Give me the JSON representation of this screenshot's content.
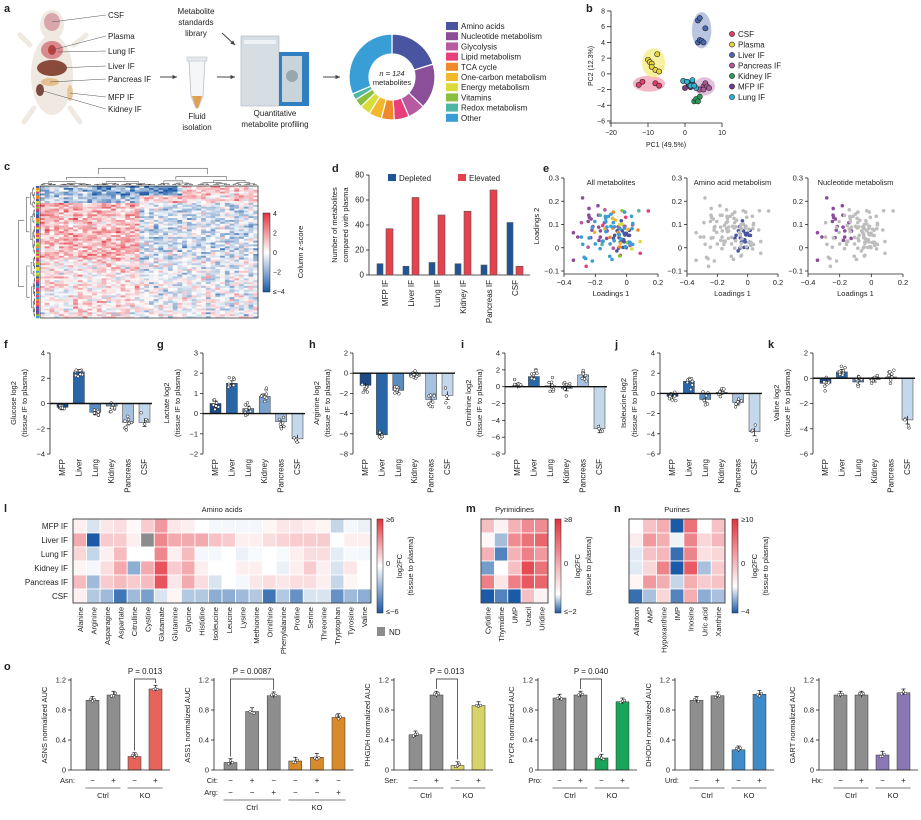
{
  "panel_labels": [
    "a",
    "b",
    "c",
    "d",
    "e",
    "f",
    "g",
    "h",
    "i",
    "j",
    "k",
    "l",
    "m",
    "n",
    "o"
  ],
  "panel_a": {
    "tissues": [
      "CSF",
      "Plasma",
      "Lung IF",
      "Liver IF",
      "Pancreas IF",
      "MFP IF",
      "Kidney IF"
    ],
    "library_label": [
      "Metabolite",
      "standards",
      "library"
    ],
    "fluid_label": [
      "Fluid",
      "isolation"
    ],
    "profiling_label": [
      "Quantitative",
      "metabolite profiling"
    ],
    "donut_center": [
      "n = 124",
      "metabolites"
    ]
  },
  "chart_data": [
    {
      "id": "donut",
      "type": "pie",
      "total": 124,
      "categories": [
        "Amino acids",
        "Nucleotide metabolism",
        "Glycolysis",
        "Lipid metabolism",
        "TCA cycle",
        "One-carbon metabolism",
        "Energy metabolism",
        "Vitamins",
        "Redox metabolism",
        "Other"
      ],
      "values": [
        25,
        21,
        8,
        7,
        6,
        6,
        5,
        4,
        3,
        39
      ],
      "colors": [
        "#4a55a2",
        "#8b4f9a",
        "#b85aa0",
        "#e83e7a",
        "#ee8a2a",
        "#f2b72a",
        "#d9dc3a",
        "#8bbf3e",
        "#4fb5a5",
        "#3a9ed6"
      ]
    },
    {
      "id": "pca",
      "type": "scatter",
      "xlabel": "PC1 (49.5%)",
      "ylabel": "PC2 (12.3%)",
      "xlim": [
        -20,
        10
      ],
      "ylim": [
        -6,
        8
      ],
      "xticks": [
        -20,
        -10,
        0,
        10
      ],
      "yticks": [
        -6,
        -4,
        -2,
        0,
        2,
        4,
        6,
        8
      ],
      "series": [
        {
          "name": "CSF",
          "color": "#e0406a",
          "ellipse": "#f3aabb",
          "points": [
            [
              -12.5,
              -1.4
            ],
            [
              -11.5,
              -1
            ],
            [
              -8,
              -1.2
            ],
            [
              -7,
              -1.5
            ]
          ]
        },
        {
          "name": "Plasma",
          "color": "#e9d33a",
          "ellipse": "#f6ee8e",
          "points": [
            [
              -10,
              1.8
            ],
            [
              -9.5,
              1.5
            ],
            [
              -9,
              1.3
            ],
            [
              -9,
              0.9
            ],
            [
              -8,
              0.5
            ],
            [
              -7.5,
              2.5
            ],
            [
              -7,
              0.3
            ]
          ]
        },
        {
          "name": "Liver IF",
          "color": "#4a68b0",
          "ellipse": "#aebbdc",
          "points": [
            [
              3.5,
              6.8
            ],
            [
              4,
              7.1
            ],
            [
              5.5,
              5.8
            ],
            [
              3.5,
              4
            ],
            [
              4,
              4.3
            ],
            [
              4.5,
              4.2
            ],
            [
              5,
              4
            ]
          ]
        },
        {
          "name": "Pancreas IF",
          "color": "#b05a9a",
          "ellipse": "#dcb7d8",
          "points": [
            [
              4,
              -2
            ],
            [
              5,
              -1.6
            ],
            [
              5.5,
              -1.2
            ],
            [
              6,
              -1.6
            ],
            [
              6.5,
              -1.8
            ],
            [
              5,
              -2
            ]
          ]
        },
        {
          "name": "Kidney IF",
          "color": "#2e9a5a",
          "points": [
            [
              2.5,
              -3.5
            ],
            [
              3,
              -3.2
            ],
            [
              3.5,
              -3.5
            ],
            [
              4,
              -2.9
            ]
          ]
        },
        {
          "name": "MFP IF",
          "color": "#7a3a8a",
          "points": [
            [
              0,
              -1.8
            ],
            [
              1,
              -1.3
            ],
            [
              0.5,
              -1
            ],
            [
              2,
              -1.2
            ],
            [
              1.5,
              -1.7
            ]
          ]
        },
        {
          "name": "Lung IF",
          "color": "#2bb3d0",
          "points": [
            [
              -0.5,
              -0.9
            ],
            [
              0.5,
              -1
            ],
            [
              1.5,
              -1.5
            ],
            [
              2,
              -0.8
            ],
            [
              3,
              -1.8
            ],
            [
              2.5,
              -1.5
            ]
          ]
        }
      ]
    },
    {
      "id": "zscore-heatmap",
      "type": "heatmap",
      "colorbar_label": "Column z-score",
      "colorbar_ticks": [
        "4",
        "2",
        "0",
        "−2",
        "≤−4"
      ],
      "range": [
        -4,
        4
      ]
    },
    {
      "id": "depleted-elevated",
      "type": "bar",
      "ylabel": [
        "Number of metabolites",
        "compared with plasma"
      ],
      "ylim": [
        0,
        80
      ],
      "yticks": [
        0,
        20,
        40,
        60,
        80
      ],
      "categories": [
        "MFP IF",
        "Liver IF",
        "Lung IF",
        "Kidney IF",
        "Pancreas IF",
        "CSF"
      ],
      "series": [
        {
          "name": "Depleted",
          "color": "#1f5597",
          "values": [
            9,
            7,
            10,
            9,
            8,
            42
          ]
        },
        {
          "name": "Elevated",
          "color": "#e8414e",
          "values": [
            37,
            62,
            48,
            51,
            68,
            7
          ]
        }
      ]
    },
    {
      "id": "loadings",
      "type": "scatter",
      "xlabel": "Loadings 1",
      "ylabel": "Loadings 2",
      "xlim": [
        -0.4,
        0.2
      ],
      "ylim": [
        -0.1,
        0.3
      ],
      "xticks": [
        "−0.4",
        "−0.2",
        "0",
        "0.2"
      ],
      "yticks": [
        "−0.1",
        "0",
        "0.1",
        "0.2",
        "0.3"
      ],
      "titles": [
        "All metabolites",
        "Amino acid metabolism",
        "Nucleotide metabolism"
      ],
      "highlight": [
        null,
        "Amino acids",
        "Nucleotide metabolism"
      ]
    },
    {
      "id": "tissue-bars",
      "type": "bar",
      "categories": [
        "MFP",
        "Liver",
        "Lung",
        "Kidney",
        "Pancreas",
        "CSF"
      ],
      "colors": [
        "#1d4a86",
        "#2866a8",
        "#5b8cc0",
        "#7aa3cf",
        "#a7c2e0",
        "#c5d7ea"
      ],
      "ylabel_suffix": "(tissue IF to plasma)",
      "panels": [
        {
          "label": "f",
          "metabolite": "Glucose log2",
          "ylim": [
            -4,
            4
          ],
          "yticks": [
            -4,
            -2,
            0,
            2,
            4
          ],
          "values": [
            -0.3,
            2.5,
            -0.7,
            -0.2,
            -1.5,
            -1.5
          ]
        },
        {
          "label": "g",
          "metabolite": "Lactate log2",
          "ylim": [
            -2,
            3
          ],
          "yticks": [
            -2,
            -1,
            0,
            1,
            2,
            3
          ],
          "values": [
            0.5,
            1.5,
            0.25,
            0.85,
            -0.4,
            -1.25
          ]
        },
        {
          "label": "h",
          "metabolite": "Arginine log2",
          "ylim": [
            -8,
            2
          ],
          "yticks": [
            -8,
            -6,
            -4,
            -2,
            0,
            2
          ],
          "values": [
            -1.2,
            -6.1,
            -1.7,
            -0.3,
            -2.6,
            -2.2
          ]
        },
        {
          "label": "i",
          "metabolite": "Ornithine log2",
          "ylim": [
            -8,
            4
          ],
          "yticks": [
            -8,
            -6,
            -4,
            -2,
            0,
            2,
            4
          ],
          "values": [
            0.1,
            1.2,
            0.1,
            -0.2,
            1.4,
            -5
          ]
        },
        {
          "label": "j",
          "metabolite": "Isoleucine log2",
          "ylim": [
            -6,
            4
          ],
          "yticks": [
            -6,
            -4,
            -2,
            0,
            2,
            4
          ],
          "values": [
            -0.3,
            1.2,
            -0.6,
            0.1,
            -0.9,
            -3.8
          ]
        },
        {
          "label": "k",
          "metabolite": "Valine log2",
          "ylim": [
            -6,
            2
          ],
          "yticks": [
            -6,
            -4,
            -2,
            0,
            2
          ],
          "values": [
            -0.4,
            0.5,
            -0.3,
            -0.1,
            0.1,
            -3.3
          ]
        }
      ]
    },
    {
      "id": "log2fc-heatmaps",
      "type": "heatmap",
      "colorbar_label": "log2FC",
      "colorbar_sub": "(tissue to plasma)",
      "nd_label": "ND",
      "rows": [
        "MFP IF",
        "Liver IF",
        "Lung IF",
        "Kidney IF",
        "Pancreas IF",
        "CSF"
      ],
      "panels": [
        {
          "label": "l",
          "title": "Amino acids",
          "range": [
            -6,
            6
          ],
          "ticks": [
            "≥6",
            "0",
            "≤−6"
          ],
          "columns": [
            "Alanine",
            "Arginine",
            "Asparagine",
            "Aspartate",
            "Citrulline",
            "Cystine",
            "Glutamate",
            "Glutamine",
            "Glycine",
            "Histidine",
            "Isoleucine",
            "Leucine",
            "Lysine",
            "Methionine",
            "Ornithine",
            "Phenylalanine",
            "Proline",
            "Serine",
            "Threonine",
            "Tryptophan",
            "Tyrosine",
            "Valine"
          ],
          "values": [
            [
              0.5,
              -1,
              0.7,
              1,
              0.2,
              1.5,
              3,
              0.7,
              0.5,
              0,
              -0.3,
              -0.3,
              -0.3,
              -0.3,
              0.3,
              0.7,
              0.7,
              0.5,
              0.3,
              -1.5,
              -0.3,
              -0.5
            ],
            [
              2.5,
              -6,
              1.5,
              1.5,
              0.5,
              null,
              3.5,
              2.5,
              2.5,
              2.5,
              1.8,
              1.5,
              0.5,
              0.5,
              1,
              1.3,
              1.5,
              1.5,
              1.5,
              0,
              0.5,
              0.5
            ],
            [
              1.2,
              -1.5,
              0.5,
              2,
              0,
              0,
              3.5,
              0.5,
              2,
              -0.3,
              -0.3,
              0,
              -0.5,
              -0.2,
              0,
              -0.2,
              0.5,
              1,
              1,
              -0.7,
              -0.2,
              -0.3
            ],
            [
              0.3,
              -0.3,
              1,
              2.5,
              -3,
              2.5,
              5,
              1.5,
              2.5,
              0.5,
              0,
              0,
              0.5,
              0.5,
              0,
              -0.5,
              0.5,
              1.5,
              0.5,
              -1,
              0.7,
              0
            ],
            [
              2,
              -2.5,
              1.5,
              2,
              1.5,
              2,
              5,
              0.7,
              2.5,
              1,
              -1,
              0,
              -0.3,
              0.7,
              1,
              0.7,
              1,
              1,
              0.5,
              -1.5,
              0.3,
              0
            ],
            [
              0.5,
              -2,
              -2.5,
              -5,
              -2.5,
              -3.5,
              -1,
              0.3,
              -2,
              -2,
              -3,
              -3,
              -2.5,
              -2,
              -5,
              -2,
              -4,
              -1,
              -1,
              -4,
              -2.5,
              -3
            ]
          ]
        },
        {
          "label": "m",
          "title": "Pyrimidines",
          "range": [
            -2,
            8
          ],
          "ticks": [
            "≥8",
            "0",
            "≤−2"
          ],
          "columns": [
            "Cytidine",
            "Thymidine",
            "UMP",
            "Uracil",
            "Uridine"
          ],
          "values": [
            [
              2.5,
              0.5,
              3,
              4.5,
              4.5
            ],
            [
              0.3,
              -0.8,
              4.5,
              5.5,
              6
            ],
            [
              3,
              -1.5,
              3,
              5,
              4
            ],
            [
              -1.2,
              0,
              2.5,
              7,
              5.5
            ],
            [
              5,
              1,
              5,
              6.5,
              6
            ],
            [
              -2,
              -1.5,
              -2,
              2.5,
              0.5
            ]
          ]
        },
        {
          "label": "n",
          "title": "Purines",
          "range": [
            -4,
            10
          ],
          "ticks": [
            "≥10",
            "0",
            "−4"
          ],
          "columns": [
            "Allantoin",
            "AMP",
            "Hypoxanthine",
            "IMP",
            "Inosine",
            "Uric acid",
            "Xanthine"
          ],
          "values": [
            [
              0,
              3,
              4,
              -4,
              7,
              0,
              3
            ],
            [
              1,
              5,
              4,
              -0.3,
              6,
              2,
              3.5
            ],
            [
              -0.5,
              3,
              3.5,
              -3.5,
              6,
              1.5,
              2
            ],
            [
              -0.5,
              2,
              6,
              -4,
              8,
              -1.5,
              2.5
            ],
            [
              0.5,
              5,
              4,
              -1,
              4,
              2.5,
              3
            ],
            [
              -3.5,
              -1.5,
              2,
              -3,
              4,
              -2,
              -1.5
            ]
          ]
        }
      ]
    },
    {
      "id": "knockout-rescue",
      "type": "bar",
      "ylim": [
        0,
        1.2
      ],
      "yticks": [
        "0",
        "0.4",
        "0.8",
        "1.2"
      ],
      "groups": [
        "Ctrl",
        "KO"
      ],
      "panels": [
        {
          "label": "o",
          "ylabel": "ASNS normalized AUC",
          "color": "#e8645a",
          "values": [
            0.93,
            1.0,
            0.18,
            1.08
          ],
          "conditions": [
            {
              "name": "Asn:",
              "signs": [
                "−",
                "+",
                "−",
                "+"
              ]
            }
          ],
          "pvalue": {
            "text": "P = 0.013",
            "between": [
              2,
              3
            ]
          }
        },
        {
          "ylabel": "ASS1 normalized AUC",
          "color": "#d98a2b",
          "values": [
            0.1,
            0.78,
            0.99,
            0.12,
            0.17,
            0.7
          ],
          "conditions": [
            {
              "name": "Cit:",
              "signs": [
                "−",
                "+",
                "−",
                "−",
                "+",
                "−"
              ]
            },
            {
              "name": "Arg:",
              "signs": [
                "−",
                "−",
                "+",
                "−",
                "−",
                "+"
              ]
            }
          ],
          "pvalue": {
            "text": "P = 0.0087",
            "between": [
              0,
              2
            ]
          }
        },
        {
          "ylabel": "PHGDH normalized AUC",
          "color": "#d8d26a",
          "values": [
            0.47,
            1.0,
            0.06,
            0.86
          ],
          "conditions": [
            {
              "name": "Ser:",
              "signs": [
                "−",
                "+",
                "−",
                "+"
              ]
            }
          ],
          "pvalue": {
            "text": "P = 0.013",
            "between": [
              1,
              2
            ]
          }
        },
        {
          "ylabel": "PYCR normalized AUC",
          "color": "#1aa35a",
          "values": [
            0.96,
            1.0,
            0.16,
            0.91
          ],
          "conditions": [
            {
              "name": "Pro:",
              "signs": [
                "−",
                "+",
                "−",
                "+"
              ]
            }
          ],
          "pvalue": {
            "text": "P = 0.040",
            "between": [
              1,
              2
            ]
          }
        },
        {
          "ylabel": "DHODH normalized AUC",
          "color": "#3d8bc9",
          "values": [
            0.93,
            0.99,
            0.27,
            1.01
          ],
          "conditions": [
            {
              "name": "Urd:",
              "signs": [
                "−",
                "+",
                "−",
                "+"
              ]
            }
          ],
          "pvalue": null
        },
        {
          "ylabel": "GART normalized AUC",
          "color": "#8a78b5",
          "values": [
            1.0,
            1.0,
            0.2,
            1.03
          ],
          "conditions": [
            {
              "name": "Hx:",
              "signs": [
                "−",
                "+",
                "−",
                "+"
              ]
            }
          ],
          "pvalue": null
        }
      ]
    }
  ]
}
